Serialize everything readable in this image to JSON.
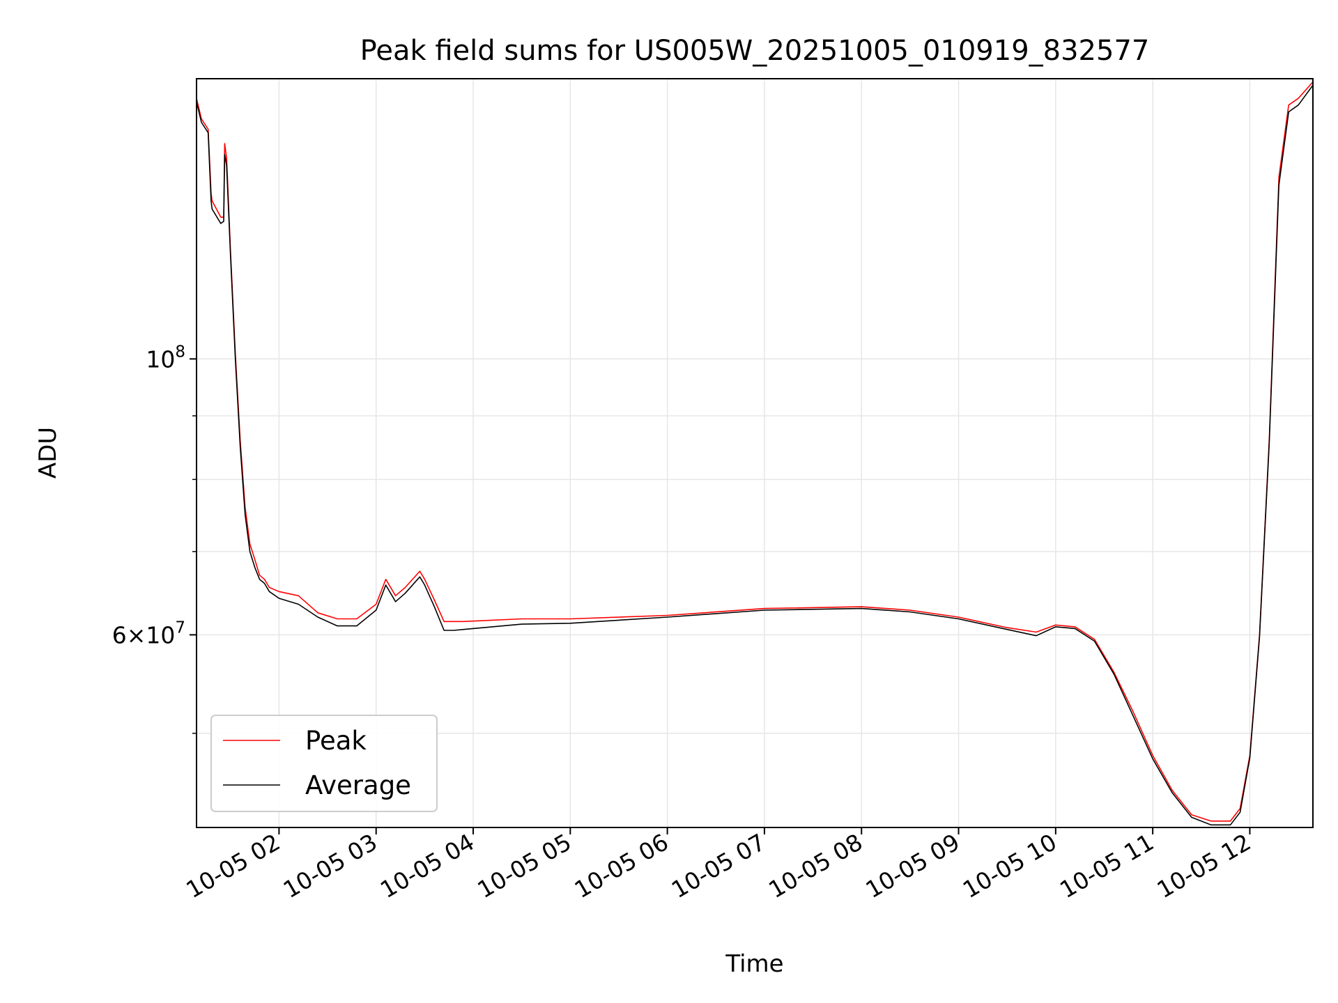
{
  "chart_data": {
    "type": "line",
    "title": "Peak field sums for US005W_20251005_010919_832577",
    "xlabel": "Time",
    "ylabel": "ADU",
    "yscale": "log",
    "ylim": [
      42000000,
      168000000
    ],
    "xlim_hours": [
      1.15,
      12.65
    ],
    "grid": true,
    "legend_location": "lower-left",
    "x_ticks": [
      {
        "hour": 2,
        "label": "10-05 02"
      },
      {
        "hour": 3,
        "label": "10-05 03"
      },
      {
        "hour": 4,
        "label": "10-05 04"
      },
      {
        "hour": 5,
        "label": "10-05 05"
      },
      {
        "hour": 6,
        "label": "10-05 06"
      },
      {
        "hour": 7,
        "label": "10-05 07"
      },
      {
        "hour": 8,
        "label": "10-05 08"
      },
      {
        "hour": 9,
        "label": "10-05 09"
      },
      {
        "hour": 10,
        "label": "10-05 10"
      },
      {
        "hour": 11,
        "label": "10-05 11"
      },
      {
        "hour": 12,
        "label": "10-05 12"
      }
    ],
    "y_ticks": [
      {
        "value": 100000000,
        "base": "10",
        "exponent": "8"
      },
      {
        "value": 60000000,
        "mantissa": "6",
        "times": "×",
        "base": "10",
        "exponent": "7"
      }
    ],
    "y_minor_ticks": [
      50000000,
      70000000,
      80000000,
      90000000
    ],
    "series": [
      {
        "name": "Peak",
        "color": "#ff0000",
        "x": [
          1.15,
          1.2,
          1.27,
          1.3,
          1.31,
          1.4,
          1.43,
          1.44,
          1.46,
          1.5,
          1.55,
          1.6,
          1.65,
          1.7,
          1.75,
          1.8,
          1.85,
          1.9,
          2.0,
          2.2,
          2.4,
          2.6,
          2.8,
          3.0,
          3.1,
          3.2,
          3.3,
          3.45,
          3.5,
          3.6,
          3.7,
          3.8,
          3.9,
          4.5,
          5.0,
          6.0,
          7.0,
          8.0,
          8.5,
          9.0,
          9.5,
          9.8,
          10.0,
          10.2,
          10.4,
          10.6,
          10.8,
          11.0,
          11.2,
          11.4,
          11.6,
          11.8,
          11.9,
          12.0,
          12.1,
          12.2,
          12.3,
          12.4,
          12.5,
          12.65
        ],
        "values": [
          162000000,
          156000000,
          153000000,
          136000000,
          134000000,
          130000000,
          130000000,
          149000000,
          145000000,
          122000000,
          101000000,
          86000000,
          76000000,
          71000000,
          69000000,
          67000000,
          66500000,
          65500000,
          65000000,
          64500000,
          62500000,
          61800000,
          61800000,
          63500000,
          66500000,
          64500000,
          65500000,
          67500000,
          66500000,
          64000000,
          61500000,
          61500000,
          61500000,
          61800000,
          61800000,
          62200000,
          63000000,
          63200000,
          62800000,
          62000000,
          60800000,
          60300000,
          61100000,
          60900000,
          59500000,
          56000000,
          52000000,
          48000000,
          45000000,
          43000000,
          42500000,
          42500000,
          43500000,
          48000000,
          60000000,
          86000000,
          140000000,
          160000000,
          162000000,
          167000000
        ]
      },
      {
        "name": "Average",
        "color": "#000000",
        "x": [
          1.15,
          1.2,
          1.27,
          1.3,
          1.31,
          1.4,
          1.43,
          1.44,
          1.46,
          1.5,
          1.55,
          1.6,
          1.65,
          1.7,
          1.75,
          1.8,
          1.85,
          1.9,
          2.0,
          2.2,
          2.4,
          2.6,
          2.8,
          3.0,
          3.1,
          3.2,
          3.3,
          3.45,
          3.5,
          3.6,
          3.7,
          3.8,
          3.9,
          4.5,
          5.0,
          6.0,
          7.0,
          8.0,
          8.5,
          9.0,
          9.5,
          9.8,
          10.0,
          10.2,
          10.4,
          10.6,
          10.8,
          11.0,
          11.2,
          11.4,
          11.6,
          11.8,
          11.9,
          12.0,
          12.1,
          12.2,
          12.3,
          12.4,
          12.5,
          12.65
        ],
        "values": [
          161000000,
          155000000,
          152000000,
          134000000,
          132000000,
          128500000,
          129000000,
          146000000,
          143000000,
          121000000,
          100000000,
          85000000,
          75000000,
          70000000,
          68000000,
          66500000,
          66000000,
          65000000,
          64200000,
          63500000,
          62000000,
          61000000,
          61000000,
          62800000,
          65800000,
          63800000,
          64800000,
          66800000,
          65800000,
          63200000,
          60500000,
          60500000,
          60600000,
          61200000,
          61300000,
          62000000,
          62800000,
          63000000,
          62600000,
          61800000,
          60600000,
          59900000,
          60900000,
          60700000,
          59300000,
          55800000,
          51600000,
          47700000,
          44800000,
          42800000,
          42200000,
          42200000,
          43200000,
          47800000,
          59800000,
          85500000,
          138000000,
          158000000,
          160000000,
          166000000
        ]
      }
    ]
  }
}
